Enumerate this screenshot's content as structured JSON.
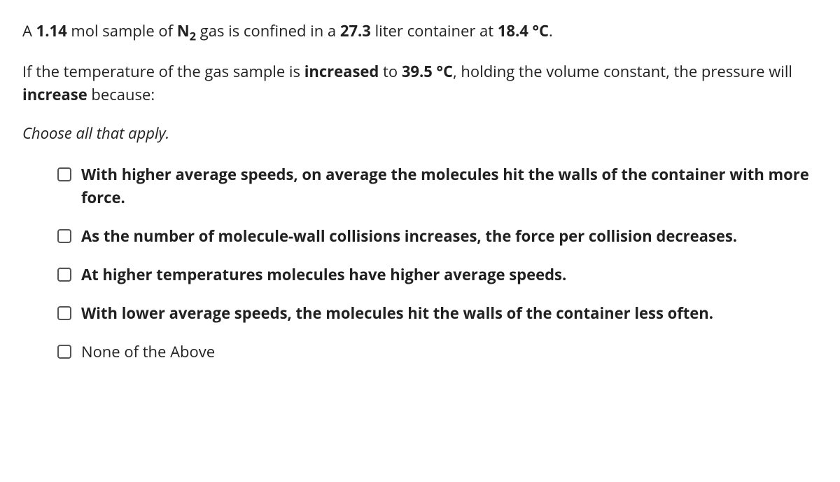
{
  "question": {
    "line1_parts": {
      "p1": "A ",
      "mol": "1.14",
      "p2": " mol sample of ",
      "gas_symbol": "N",
      "gas_sub": "2",
      "p3": " gas is confined in a ",
      "volume": "27.3",
      "p4": " liter container at ",
      "temp1": "18.4 °C",
      "p5": "."
    },
    "line2_parts": {
      "p1": "If the temperature of the gas sample is ",
      "action1": "increased",
      "p2": " to ",
      "temp2": "39.5 °C",
      "p3": ", holding the volume constant, the pressure will ",
      "action2": "increase",
      "p4": " because:"
    },
    "instruction": "Choose all that apply."
  },
  "options": [
    {
      "text": "With higher average speeds, on average the molecules hit the walls of the container with more force.",
      "bold": true
    },
    {
      "text": "As the number of molecule-wall collisions increases, the force per collision decreases.",
      "bold": true
    },
    {
      "text": "At higher temperatures molecules have higher average speeds.",
      "bold": true
    },
    {
      "text": "With lower average speeds, the molecules hit the walls of the container less often.",
      "bold": true
    },
    {
      "text": "None of the Above",
      "bold": false
    }
  ]
}
